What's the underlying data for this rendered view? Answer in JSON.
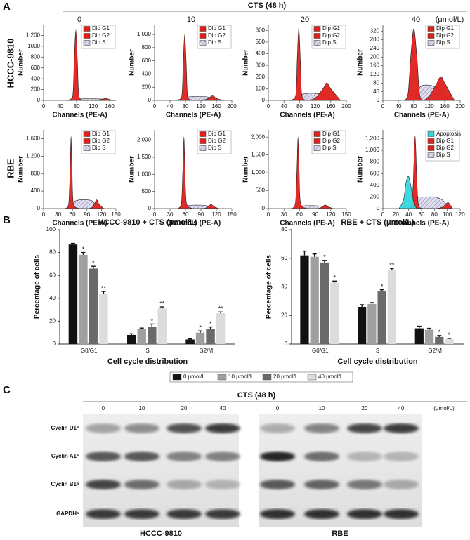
{
  "panels": {
    "a": "A",
    "b": "B",
    "c": "C"
  },
  "panel_a": {
    "title": "CTS (48 h)",
    "concentrations": [
      "0",
      "10",
      "20",
      "40"
    ],
    "unit": "(μmol/L)",
    "rows": [
      "HCCC-9810",
      "RBE"
    ]
  },
  "chart_data": [
    {
      "type": "area",
      "xlabel": "Channels (PE-A)",
      "ylabel": "Number",
      "xlim": [
        0,
        175
      ],
      "ylim": [
        0,
        1400
      ],
      "xticks": [
        0,
        40,
        80,
        120,
        160
      ],
      "yticks": [
        0,
        200,
        400,
        600,
        800,
        1000,
        {
          "value": 1200,
          "label": "1,200"
        }
      ],
      "x": [
        55,
        70,
        74,
        78,
        82,
        86,
        100,
        120,
        140,
        150,
        160,
        175
      ],
      "series": [
        {
          "name": "Dip G1",
          "color": "#e0201b",
          "values": [
            0,
            60,
            700,
            1300,
            700,
            60,
            0,
            0,
            0,
            0,
            0,
            0
          ]
        },
        {
          "name": "Dip G2",
          "color": "#e0201b",
          "values": [
            0,
            0,
            0,
            0,
            0,
            0,
            0,
            0,
            15,
            40,
            15,
            0
          ]
        },
        {
          "name": "Dip S",
          "color": "#b8b8d8",
          "pattern": "hatch",
          "values": [
            0,
            0,
            0,
            0,
            10,
            25,
            30,
            30,
            25,
            15,
            5,
            0
          ]
        }
      ]
    },
    {
      "type": "area",
      "xlabel": "Channels (PE-A)",
      "ylabel": "Number",
      "xlim": [
        0,
        200
      ],
      "ylim": [
        0,
        1150
      ],
      "xticks": [
        0,
        40,
        80,
        120,
        160,
        200
      ],
      "yticks": [
        0,
        200,
        400,
        600,
        800,
        {
          "value": 1000,
          "label": "1,000"
        }
      ],
      "x": [
        55,
        70,
        74,
        78,
        82,
        86,
        100,
        120,
        140,
        150,
        160,
        180
      ],
      "series": [
        {
          "name": "Dip G1",
          "color": "#e0201b",
          "values": [
            0,
            50,
            550,
            1000,
            550,
            50,
            0,
            0,
            0,
            0,
            0,
            0
          ]
        },
        {
          "name": "Dip G2",
          "color": "#e0201b",
          "values": [
            0,
            0,
            0,
            0,
            0,
            0,
            0,
            0,
            30,
            80,
            30,
            0
          ]
        },
        {
          "name": "Dip S",
          "color": "#b8b8d8",
          "pattern": "hatch",
          "values": [
            0,
            0,
            0,
            0,
            20,
            50,
            60,
            60,
            50,
            30,
            10,
            0
          ]
        }
      ]
    },
    {
      "type": "area",
      "xlabel": "Channels (PE-A)",
      "ylabel": "Number",
      "xlim": [
        0,
        200
      ],
      "ylim": [
        0,
        650
      ],
      "xticks": [
        0,
        40,
        80,
        120,
        160,
        200
      ],
      "yticks": [
        0,
        100,
        200,
        300,
        400,
        500,
        600
      ],
      "x": [
        55,
        70,
        74,
        78,
        82,
        86,
        100,
        120,
        140,
        150,
        160,
        185
      ],
      "series": [
        {
          "name": "Dip G1",
          "color": "#e0201b",
          "values": [
            0,
            40,
            350,
            620,
            350,
            40,
            0,
            0,
            0,
            0,
            0,
            0
          ]
        },
        {
          "name": "Dip G2",
          "color": "#e0201b",
          "values": [
            0,
            0,
            0,
            0,
            0,
            0,
            0,
            20,
            100,
            150,
            100,
            0
          ]
        },
        {
          "name": "Dip S",
          "color": "#b8b8d8",
          "pattern": "hatch",
          "values": [
            0,
            0,
            0,
            0,
            20,
            50,
            60,
            60,
            50,
            30,
            10,
            0
          ]
        }
      ]
    },
    {
      "type": "area",
      "xlabel": "Channels (PE-A)",
      "ylabel": "Number",
      "xlim": [
        0,
        200
      ],
      "ylim": [
        0,
        350
      ],
      "xticks": [
        0,
        40,
        80,
        120,
        160,
        200
      ],
      "yticks": [
        0,
        40,
        80,
        120,
        160,
        200,
        240,
        280,
        320
      ],
      "x": [
        55,
        65,
        72,
        80,
        88,
        95,
        105,
        120,
        140,
        150,
        160,
        185
      ],
      "series": [
        {
          "name": "Dip G1",
          "color": "#e0201b",
          "values": [
            0,
            30,
            200,
            330,
            200,
            30,
            0,
            0,
            0,
            0,
            0,
            0
          ]
        },
        {
          "name": "Dip G2",
          "color": "#e0201b",
          "values": [
            0,
            0,
            0,
            0,
            0,
            0,
            0,
            20,
            80,
            110,
            80,
            0
          ]
        },
        {
          "name": "Dip S",
          "color": "#b8b8d8",
          "pattern": "hatch",
          "values": [
            0,
            0,
            0,
            0,
            40,
            60,
            70,
            70,
            60,
            40,
            20,
            0
          ]
        }
      ]
    },
    {
      "type": "area",
      "xlabel": "Channels (PE-A)",
      "ylabel": "Number",
      "xlim": [
        0,
        150
      ],
      "ylim": [
        0,
        1800
      ],
      "xticks": [
        0,
        30,
        60,
        90,
        120,
        150
      ],
      "yticks": [
        0,
        400,
        800,
        {
          "value": 1200,
          "label": "1,200"
        },
        {
          "value": 1600,
          "label": "1,600"
        }
      ],
      "x": [
        45,
        52,
        55,
        57,
        59,
        62,
        75,
        90,
        100,
        105,
        110,
        115,
        125
      ],
      "series": [
        {
          "name": "Dip G1",
          "color": "#e0201b",
          "values": [
            0,
            100,
            900,
            1650,
            900,
            100,
            0,
            0,
            0,
            0,
            0,
            0,
            0
          ]
        },
        {
          "name": "Dip G2",
          "color": "#e0201b",
          "values": [
            0,
            0,
            0,
            0,
            0,
            0,
            0,
            0,
            20,
            100,
            200,
            100,
            0
          ]
        },
        {
          "name": "Dip S",
          "color": "#b8b8d8",
          "pattern": "hatch",
          "values": [
            0,
            0,
            0,
            0,
            50,
            150,
            200,
            200,
            180,
            120,
            50,
            10,
            0
          ]
        }
      ]
    },
    {
      "type": "area",
      "xlabel": "Channels (PE-A)",
      "ylabel": "Number",
      "xlim": [
        0,
        150
      ],
      "ylim": [
        0,
        2300
      ],
      "xticks": [
        0,
        30,
        60,
        90,
        120,
        150
      ],
      "yticks": [
        0,
        500,
        {
          "value": 1000,
          "label": "1,000"
        },
        {
          "value": 1500,
          "label": "1,500"
        },
        {
          "value": 2000,
          "label": "2,000"
        }
      ],
      "x": [
        45,
        52,
        55,
        57,
        59,
        62,
        75,
        90,
        100,
        105,
        110,
        115,
        125
      ],
      "series": [
        {
          "name": "Dip G1",
          "color": "#e0201b",
          "values": [
            0,
            150,
            1200,
            2100,
            1200,
            150,
            0,
            0,
            0,
            0,
            0,
            0,
            0
          ]
        },
        {
          "name": "Dip G2",
          "color": "#e0201b",
          "values": [
            0,
            0,
            0,
            0,
            0,
            0,
            0,
            0,
            20,
            80,
            120,
            60,
            0
          ]
        },
        {
          "name": "Dip S",
          "color": "#b8b8d8",
          "pattern": "hatch",
          "values": [
            0,
            0,
            0,
            0,
            30,
            80,
            100,
            100,
            90,
            60,
            30,
            5,
            0
          ]
        }
      ]
    },
    {
      "type": "area",
      "xlabel": "Channels (PE-A)",
      "ylabel": "Number",
      "xlim": [
        0,
        150
      ],
      "ylim": [
        0,
        2200
      ],
      "xticks": [
        0,
        30,
        60,
        90,
        120,
        150
      ],
      "yticks": [
        0,
        500,
        {
          "value": 1000,
          "label": "1,000"
        },
        {
          "value": 1500,
          "label": "1,500"
        },
        {
          "value": 2000,
          "label": "2,000"
        }
      ],
      "x": [
        45,
        52,
        55,
        57,
        59,
        62,
        75,
        90,
        100,
        105,
        110,
        115,
        125
      ],
      "series": [
        {
          "name": "Dip G1",
          "color": "#e0201b",
          "values": [
            0,
            150,
            1100,
            2000,
            1100,
            150,
            0,
            0,
            0,
            0,
            0,
            0,
            0
          ]
        },
        {
          "name": "Dip G2",
          "color": "#e0201b",
          "values": [
            0,
            0,
            0,
            0,
            0,
            0,
            0,
            0,
            20,
            70,
            100,
            50,
            0
          ]
        },
        {
          "name": "Dip S",
          "color": "#b8b8d8",
          "pattern": "hatch",
          "values": [
            0,
            0,
            0,
            0,
            30,
            70,
            80,
            80,
            70,
            50,
            20,
            5,
            0
          ]
        }
      ]
    },
    {
      "type": "area",
      "xlabel": "Channels (PE-A)",
      "ylabel": "Number",
      "xlim": [
        0,
        120
      ],
      "ylim": [
        0,
        1350
      ],
      "xticks": [
        0,
        20,
        40,
        60,
        80,
        100,
        120
      ],
      "yticks": [
        0,
        200,
        400,
        600,
        800,
        {
          "value": 1000,
          "label": "1,000"
        },
        {
          "value": 1200,
          "label": "1,200"
        }
      ],
      "x": [
        25,
        32,
        36,
        40,
        44,
        47,
        50,
        53,
        56,
        65,
        80,
        92,
        98,
        102,
        108
      ],
      "series": [
        {
          "name": "Apoptosis",
          "color": "#35d6dc",
          "values": [
            0,
            150,
            450,
            550,
            350,
            150,
            50,
            0,
            0,
            0,
            0,
            0,
            0,
            0,
            0
          ]
        },
        {
          "name": "Dip G1",
          "color": "#e0201b",
          "values": [
            0,
            0,
            0,
            0,
            50,
            400,
            1250,
            400,
            30,
            0,
            0,
            0,
            0,
            0,
            0
          ]
        },
        {
          "name": "Dip G2",
          "color": "#e0201b",
          "values": [
            0,
            0,
            0,
            0,
            0,
            0,
            0,
            0,
            0,
            0,
            0,
            20,
            80,
            100,
            0
          ]
        },
        {
          "name": "Dip S",
          "color": "#b8b8d8",
          "pattern": "hatch",
          "values": [
            0,
            0,
            0,
            0,
            0,
            50,
            150,
            200,
            200,
            200,
            200,
            150,
            80,
            30,
            0
          ]
        }
      ]
    },
    {
      "type": "bar",
      "title": "HCCC-9810 + CTS (μmol/L)",
      "ylabel": "Percentage of cells",
      "xlabel": "Cell cycle distribution",
      "categories": [
        "G0/G1",
        "S",
        "G2/M"
      ],
      "ylim": [
        0,
        100
      ],
      "yticks": [
        0,
        20,
        40,
        60,
        80,
        100
      ],
      "legend": "below",
      "series": [
        {
          "name": "0 μmol/L",
          "color": "#111111",
          "values": [
            87,
            8,
            4
          ],
          "errors": [
            1,
            1,
            0.5
          ],
          "annotations": [
            null,
            null,
            null
          ]
        },
        {
          "name": "10 μmol/L",
          "color": "#a0a0a0",
          "values": [
            78,
            13,
            10
          ],
          "errors": [
            2,
            1,
            1.5
          ],
          "annotations": [
            "*",
            null,
            "*"
          ]
        },
        {
          "name": "20 μmol/L",
          "color": "#6a6a6a",
          "values": [
            66,
            15,
            13
          ],
          "errors": [
            2,
            2.5,
            2
          ],
          "annotations": [
            "*",
            "*",
            "*"
          ]
        },
        {
          "name": "40 μmol/L",
          "color": "#dcdcdc",
          "values": [
            44,
            31,
            27
          ],
          "errors": [
            2,
            1.5,
            1
          ],
          "annotations": [
            "**",
            "**",
            "**"
          ]
        }
      ]
    },
    {
      "type": "bar",
      "title": "RBE + CTS (μmol/L)",
      "ylabel": "Percentage of cells",
      "xlabel": "Cell cycle distribution",
      "categories": [
        "G0/G1",
        "S",
        "G2/M"
      ],
      "ylim": [
        0,
        80
      ],
      "yticks": [
        0,
        20,
        40,
        60,
        80
      ],
      "series": [
        {
          "color": "#111111",
          "values": [
            62,
            26,
            11
          ],
          "errors": [
            3,
            1.5,
            1.5
          ],
          "annotations": [
            null,
            null,
            null
          ]
        },
        {
          "color": "#a0a0a0",
          "values": [
            61,
            28,
            10
          ],
          "errors": [
            2,
            1,
            1
          ],
          "annotations": [
            null,
            null,
            null
          ]
        },
        {
          "color": "#6a6a6a",
          "values": [
            57,
            37,
            5
          ],
          "errors": [
            1.5,
            1,
            1
          ],
          "annotations": [
            "*",
            "*",
            "*"
          ]
        },
        {
          "color": "#dcdcdc",
          "values": [
            43,
            52,
            3.5
          ],
          "errors": [
            1,
            1,
            0.5
          ],
          "annotations": [
            "*",
            "**",
            "*"
          ]
        }
      ]
    }
  ],
  "panel_c": {
    "title": "CTS (48 h)",
    "concentrations_left": [
      "0",
      "10",
      "20",
      "40"
    ],
    "concentrations_right": [
      "0",
      "10",
      "20",
      "40"
    ],
    "unit": "(μmol/L)",
    "proteins": [
      "Cyclin D1ᵃ",
      "Cyclin A1ᵃ",
      "Cyclin B1ᵃ",
      "GAPDHᵃ"
    ],
    "cell_lines": [
      "HCCC-9810",
      "RBE"
    ]
  }
}
